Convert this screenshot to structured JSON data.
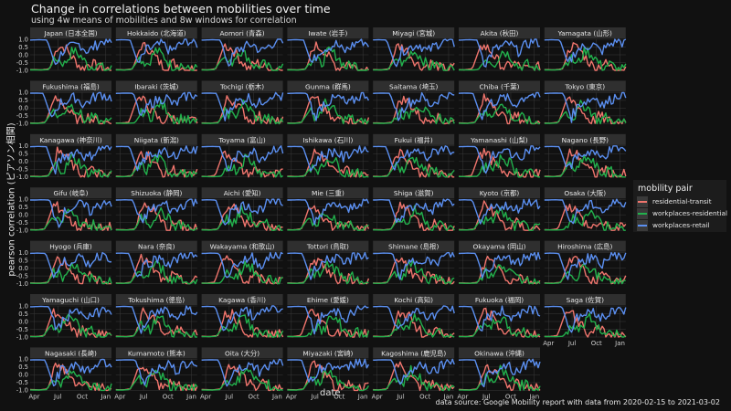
{
  "title": "Change in correlations between mobilities over time",
  "subtitle": "using 4w means of mobilities and 8w windows for correlation",
  "caption": "data source: Google Mobility report with data from 2020-02-15 to 2021-03-02",
  "colors": {
    "background": "#111111",
    "panel": "#111111",
    "strip": "#2f2f2f",
    "grid": "#3a3a3a",
    "residential-transit": "#f0756d",
    "workplaces-residential": "#22b14c",
    "workplaces-retail": "#5b8ff0"
  },
  "chart_data": {
    "type": "line",
    "facet": "small-multiples",
    "xlabel": "date",
    "ylabel": "pearson correlation (ピアソン相関)",
    "x_ticks": [
      "Apr",
      "Jul",
      "Oct",
      "Jan"
    ],
    "y_ticks": [
      "1.0",
      "0.5",
      "0.0",
      "-0.5",
      "-1.0"
    ],
    "ylim": [
      -1.0,
      1.0
    ],
    "xlim": [
      "2020-03-14",
      "2021-03-02"
    ],
    "grid": true,
    "legend": {
      "title": "mobility pair",
      "position": "right",
      "entries": [
        "residential-transit",
        "workplaces-residential",
        "workplaces-retail"
      ]
    },
    "panels": [
      "Japan (日本全国)",
      "Hokkaido (北海道)",
      "Aomori (青森)",
      "Iwate (岩手)",
      "Miyagi (宮城)",
      "Akita (秋田)",
      "Yamagata (山形)",
      "Fukushima (福島)",
      "Ibaraki (茨城)",
      "Tochigi (栃木)",
      "Gunma (群馬)",
      "Saitama (埼玉)",
      "Chiba (千葉)",
      "Tokyo (東京)",
      "Kanagawa (神奈川)",
      "Niigata (新潟)",
      "Toyama (富山)",
      "Ishikawa (石川)",
      "Fukui (福井)",
      "Yamanashi (山梨)",
      "Nagano (長野)",
      "Gifu (岐阜)",
      "Shizuoka (静岡)",
      "Aichi (愛知)",
      "Mie (三重)",
      "Shiga (滋賀)",
      "Kyoto (京都)",
      "Osaka (大阪)",
      "Hyogo (兵庫)",
      "Nara (奈良)",
      "Wakayama (和歌山)",
      "Tottori (鳥取)",
      "Shimane (島根)",
      "Okayama (岡山)",
      "Hiroshima (広島)",
      "Yamaguchi (山口)",
      "Tokushima (徳島)",
      "Kagawa (香川)",
      "Ehime (愛媛)",
      "Kochi (高知)",
      "Fukuoka (福岡)",
      "Saga (佐賀)",
      "Nagasaki (長崎)",
      "Kumamoto (熊本)",
      "Oita (大分)",
      "Miyazaki (宮崎)",
      "Kagoshima (鹿児島)",
      "Okinawa (沖縄)"
    ],
    "series_shape": {
      "month_axis": [
        "2020-04",
        "2020-05",
        "2020-06",
        "2020-07",
        "2020-08",
        "2020-09",
        "2020-10",
        "2020-11",
        "2020-12",
        "2021-01",
        "2021-02"
      ],
      "residential-transit": [
        -0.95,
        -0.97,
        -0.9,
        0.6,
        0.4,
        -0.3,
        -0.9,
        -0.5,
        -0.8,
        -0.95,
        -0.8
      ],
      "workplaces-residential": [
        -0.97,
        -0.98,
        -0.95,
        -0.2,
        -0.6,
        0.3,
        -0.1,
        -0.8,
        -0.6,
        -0.97,
        -0.9
      ],
      "workplaces-retail": [
        0.95,
        0.97,
        0.95,
        -0.6,
        0.3,
        0.5,
        0.7,
        0.2,
        0.6,
        0.95,
        0.7
      ]
    }
  }
}
